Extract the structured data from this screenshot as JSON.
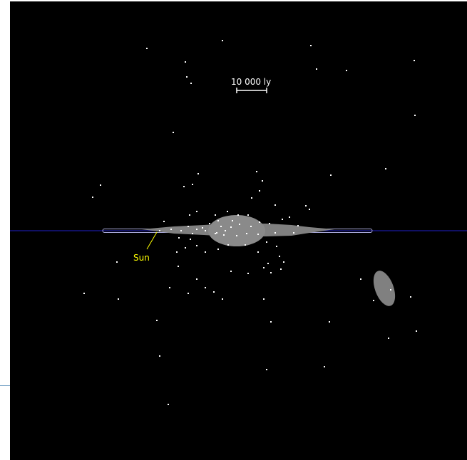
{
  "scale_bar": {
    "label": "10 000 ly"
  },
  "sun_label": {
    "text": "Sun"
  },
  "colors": {
    "background": "#000000",
    "galactic_plane": "#1a1aa0",
    "disk": "#808080",
    "disk_outline": "#a8a8d8",
    "bulge": "#8a8a8a",
    "satellite": "#808080",
    "stars": "#ffffff",
    "label": "#ffff00"
  }
}
